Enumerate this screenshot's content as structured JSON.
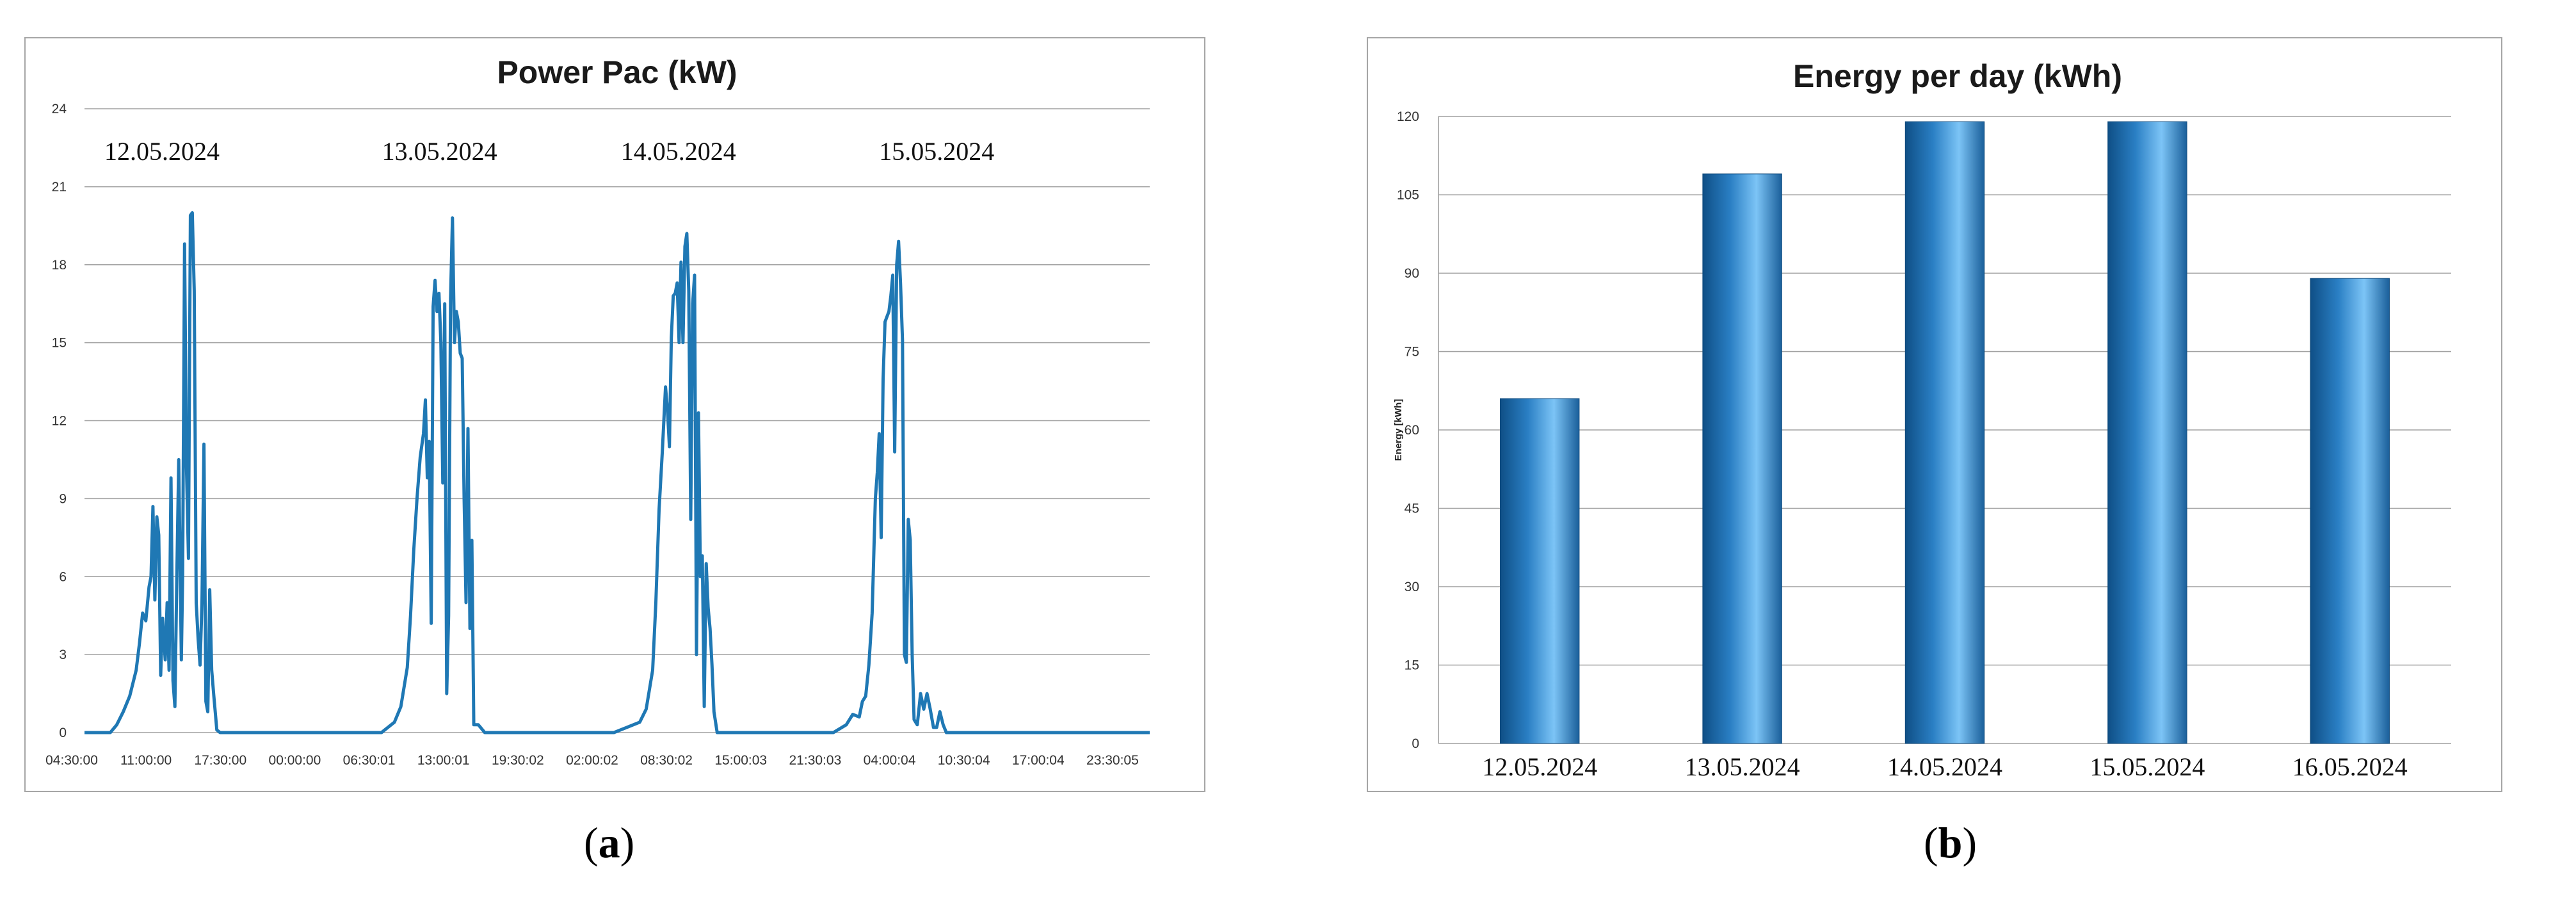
{
  "chart_data": [
    {
      "type": "line",
      "title": "Power Pac (kW)",
      "xlabel": "",
      "ylabel": "",
      "ylim": [
        0,
        24
      ],
      "yticks": [
        0,
        3,
        6,
        9,
        12,
        15,
        18,
        21,
        24
      ],
      "x_ticks": [
        "04:30:00",
        "11:00:00",
        "17:30:00",
        "00:00:00",
        "06:30:01",
        "13:00:01",
        "19:30:02",
        "02:00:02",
        "08:30:02",
        "15:00:03",
        "21:30:03",
        "04:00:04",
        "10:30:04",
        "17:00:04",
        "23:30:05"
      ],
      "day_labels": [
        {
          "text": "12.05.2024",
          "x": 1.2
        },
        {
          "text": "13.05.2024",
          "x": 5.5
        },
        {
          "text": "14.05.2024",
          "x": 9.2
        },
        {
          "text": "15.05.2024",
          "x": 13.2
        }
      ],
      "color": "#1f78b4",
      "x_range": [
        0,
        16.5
      ],
      "points": [
        [
          0,
          0
        ],
        [
          0.4,
          0
        ],
        [
          0.5,
          0.3
        ],
        [
          0.6,
          0.8
        ],
        [
          0.7,
          1.4
        ],
        [
          0.8,
          2.4
        ],
        [
          0.85,
          3.4
        ],
        [
          0.9,
          4.6
        ],
        [
          0.95,
          4.3
        ],
        [
          1.0,
          5.6
        ],
        [
          1.03,
          6.0
        ],
        [
          1.06,
          8.7
        ],
        [
          1.09,
          5.1
        ],
        [
          1.12,
          8.3
        ],
        [
          1.15,
          7.6
        ],
        [
          1.18,
          2.2
        ],
        [
          1.21,
          4.4
        ],
        [
          1.25,
          2.8
        ],
        [
          1.28,
          5.0
        ],
        [
          1.31,
          2.4
        ],
        [
          1.34,
          9.8
        ],
        [
          1.37,
          2.0
        ],
        [
          1.4,
          1.0
        ],
        [
          1.43,
          6.0
        ],
        [
          1.46,
          10.5
        ],
        [
          1.5,
          2.8
        ],
        [
          1.52,
          6.0
        ],
        [
          1.55,
          18.8
        ],
        [
          1.58,
          10.2
        ],
        [
          1.61,
          6.7
        ],
        [
          1.64,
          19.9
        ],
        [
          1.67,
          20.0
        ],
        [
          1.7,
          17.0
        ],
        [
          1.73,
          5.0
        ],
        [
          1.76,
          3.6
        ],
        [
          1.79,
          2.6
        ],
        [
          1.82,
          5.0
        ],
        [
          1.85,
          11.1
        ],
        [
          1.88,
          1.2
        ],
        [
          1.91,
          0.8
        ],
        [
          1.94,
          5.5
        ],
        [
          1.97,
          2.4
        ],
        [
          2.0,
          1.5
        ],
        [
          2.05,
          0.1
        ],
        [
          2.1,
          0
        ],
        [
          4.6,
          0
        ],
        [
          4.8,
          0.4
        ],
        [
          4.9,
          1.0
        ],
        [
          5.0,
          2.5
        ],
        [
          5.05,
          4.5
        ],
        [
          5.1,
          7.0
        ],
        [
          5.15,
          9.0
        ],
        [
          5.2,
          10.6
        ],
        [
          5.25,
          11.5
        ],
        [
          5.28,
          12.8
        ],
        [
          5.31,
          9.8
        ],
        [
          5.34,
          11.2
        ],
        [
          5.37,
          4.2
        ],
        [
          5.4,
          16.4
        ],
        [
          5.43,
          17.4
        ],
        [
          5.46,
          16.2
        ],
        [
          5.49,
          16.9
        ],
        [
          5.52,
          15.0
        ],
        [
          5.55,
          9.6
        ],
        [
          5.58,
          16.5
        ],
        [
          5.61,
          1.5
        ],
        [
          5.64,
          4.5
        ],
        [
          5.67,
          16.7
        ],
        [
          5.7,
          19.8
        ],
        [
          5.73,
          15.0
        ],
        [
          5.76,
          16.2
        ],
        [
          5.79,
          15.8
        ],
        [
          5.82,
          14.6
        ],
        [
          5.85,
          14.4
        ],
        [
          5.88,
          9.0
        ],
        [
          5.91,
          5.0
        ],
        [
          5.94,
          11.7
        ],
        [
          5.97,
          4.0
        ],
        [
          6.0,
          7.4
        ],
        [
          6.03,
          0.3
        ],
        [
          6.1,
          0.3
        ],
        [
          6.2,
          0
        ],
        [
          8.2,
          0
        ],
        [
          8.4,
          0.2
        ],
        [
          8.6,
          0.4
        ],
        [
          8.7,
          0.9
        ],
        [
          8.8,
          2.4
        ],
        [
          8.85,
          5.0
        ],
        [
          8.9,
          8.6
        ],
        [
          8.95,
          10.8
        ],
        [
          9.0,
          13.3
        ],
        [
          9.03,
          12.4
        ],
        [
          9.06,
          11.0
        ],
        [
          9.09,
          15.2
        ],
        [
          9.12,
          16.8
        ],
        [
          9.15,
          16.9
        ],
        [
          9.18,
          17.3
        ],
        [
          9.21,
          15.0
        ],
        [
          9.24,
          18.1
        ],
        [
          9.27,
          15.0
        ],
        [
          9.3,
          18.7
        ],
        [
          9.33,
          19.2
        ],
        [
          9.36,
          17.0
        ],
        [
          9.39,
          8.2
        ],
        [
          9.42,
          16.5
        ],
        [
          9.45,
          17.6
        ],
        [
          9.48,
          3.0
        ],
        [
          9.51,
          12.3
        ],
        [
          9.54,
          6.0
        ],
        [
          9.57,
          6.8
        ],
        [
          9.6,
          1.0
        ],
        [
          9.63,
          6.5
        ],
        [
          9.66,
          4.8
        ],
        [
          9.69,
          4.0
        ],
        [
          9.72,
          2.6
        ],
        [
          9.75,
          0.8
        ],
        [
          9.8,
          0
        ],
        [
          11.6,
          0
        ],
        [
          11.8,
          0.3
        ],
        [
          11.9,
          0.7
        ],
        [
          12.0,
          0.6
        ],
        [
          12.05,
          1.2
        ],
        [
          12.1,
          1.4
        ],
        [
          12.15,
          2.6
        ],
        [
          12.2,
          4.6
        ],
        [
          12.25,
          9.0
        ],
        [
          12.28,
          10.0
        ],
        [
          12.31,
          11.5
        ],
        [
          12.34,
          7.5
        ],
        [
          12.37,
          13.6
        ],
        [
          12.4,
          15.8
        ],
        [
          12.43,
          16.0
        ],
        [
          12.46,
          16.2
        ],
        [
          12.49,
          16.8
        ],
        [
          12.52,
          17.6
        ],
        [
          12.55,
          10.8
        ],
        [
          12.58,
          18.0
        ],
        [
          12.61,
          18.9
        ],
        [
          12.64,
          17.3
        ],
        [
          12.67,
          15.1
        ],
        [
          12.7,
          3.0
        ],
        [
          12.73,
          2.7
        ],
        [
          12.76,
          8.2
        ],
        [
          12.79,
          7.4
        ],
        [
          12.82,
          3.0
        ],
        [
          12.85,
          0.5
        ],
        [
          12.9,
          0.3
        ],
        [
          12.95,
          1.5
        ],
        [
          13.0,
          0.9
        ],
        [
          13.05,
          1.5
        ],
        [
          13.1,
          0.9
        ],
        [
          13.15,
          0.2
        ],
        [
          13.2,
          0.2
        ],
        [
          13.25,
          0.8
        ],
        [
          13.3,
          0.3
        ],
        [
          13.35,
          0
        ],
        [
          16.5,
          0
        ]
      ]
    },
    {
      "type": "bar",
      "title": "Energy per day (kWh)",
      "xlabel": "",
      "ylabel": "Energy [kWh]",
      "ylim": [
        0,
        120
      ],
      "yticks": [
        0,
        15,
        30,
        45,
        60,
        75,
        90,
        105,
        120
      ],
      "categories": [
        "12.05.2024",
        "13.05.2024",
        "14.05.2024",
        "15.05.2024",
        "16.05.2024"
      ],
      "values": [
        66,
        109,
        119,
        119,
        89
      ],
      "color": "#2f86c8"
    }
  ],
  "labels": {
    "a": "a",
    "b": "b"
  }
}
